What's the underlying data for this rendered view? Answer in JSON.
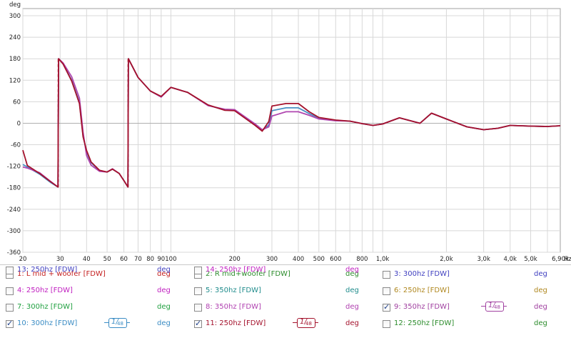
{
  "chart_data": {
    "type": "line",
    "ylabel": "deg",
    "xlabel": "Hz",
    "x_scale": "log",
    "xlim": [
      20,
      6900
    ],
    "ylim": [
      -360,
      320
    ],
    "x_ticks": [
      {
        "v": 20,
        "label": "20"
      },
      {
        "v": 30,
        "label": "30"
      },
      {
        "v": 40,
        "label": "40"
      },
      {
        "v": 50,
        "label": "50"
      },
      {
        "v": 60,
        "label": "60"
      },
      {
        "v": 70,
        "label": "70"
      },
      {
        "v": 80,
        "label": "80"
      },
      {
        "v": 90,
        "label": "90"
      },
      {
        "v": 100,
        "label": "100"
      },
      {
        "v": 200,
        "label": "200"
      },
      {
        "v": 300,
        "label": "300"
      },
      {
        "v": 400,
        "label": "400"
      },
      {
        "v": 500,
        "label": "500"
      },
      {
        "v": 600,
        "label": "600"
      },
      {
        "v": 800,
        "label": "800"
      },
      {
        "v": 1000,
        "label": "1,0k"
      },
      {
        "v": 2000,
        "label": "2,0k"
      },
      {
        "v": 3000,
        "label": "3,0k"
      },
      {
        "v": 4000,
        "label": "4,0k"
      },
      {
        "v": 5000,
        "label": "5,0k"
      },
      {
        "v": 6900,
        "label": "6,90k"
      }
    ],
    "x_grid": [
      20,
      30,
      40,
      50,
      60,
      70,
      80,
      90,
      100,
      200,
      300,
      400,
      500,
      600,
      700,
      800,
      900,
      1000,
      2000,
      3000,
      4000,
      5000,
      6000
    ],
    "y_ticks": [
      300,
      240,
      180,
      120,
      60,
      0,
      -60,
      -120,
      -180,
      -240,
      -300,
      -360
    ],
    "grid": true,
    "series": [
      {
        "name": "10: 300hz [FDW]",
        "color": "#4a90c4",
        "dashed": false,
        "x": [
          20,
          21,
          24,
          27,
          29.3,
          29.5,
          31,
          34,
          37,
          38.5,
          40,
          42,
          46,
          50,
          53,
          57,
          60,
          62.7,
          63,
          70,
          80,
          90,
          100,
          120,
          150,
          180,
          200,
          250,
          270,
          290,
          300,
          350,
          400,
          450,
          500,
          600,
          700,
          800,
          900,
          1000,
          1200,
          1500,
          1700,
          2000,
          2500,
          3000,
          3500,
          4000,
          5000,
          6000,
          6900
        ],
        "y": [
          -115,
          -122,
          -142,
          -165,
          -178,
          180,
          165,
          120,
          58,
          -35,
          -80,
          -110,
          -132,
          -136,
          -128,
          -140,
          -160,
          -178,
          180,
          128,
          90,
          74,
          100,
          86,
          50,
          37,
          36,
          -4,
          -20,
          -5,
          35,
          43,
          43,
          27,
          14,
          8,
          6,
          -1,
          -6,
          -2,
          15,
          0,
          28,
          12,
          -10,
          -18,
          -14,
          -6,
          -8,
          -9,
          -7
        ]
      },
      {
        "name": "9: 350hz [FDW]",
        "color": "#b046b0",
        "dashed": false,
        "x": [
          20,
          21,
          24,
          27,
          29.3,
          29.5,
          31,
          34,
          37,
          38.5,
          40,
          42,
          46,
          50,
          53,
          57,
          60,
          62.7,
          63,
          70,
          80,
          90,
          100,
          120,
          150,
          180,
          200,
          250,
          270,
          290,
          300,
          350,
          400,
          450,
          500,
          600,
          700,
          800,
          900,
          1000,
          1200,
          1500,
          1700,
          2000,
          2500,
          3000,
          3500,
          4000,
          5000,
          6000,
          6900
        ],
        "y": [
          -122,
          -125,
          -138,
          -162,
          -178,
          180,
          168,
          130,
          70,
          -25,
          -90,
          -117,
          -134,
          -136,
          -127,
          -140,
          -160,
          -178,
          180,
          128,
          90,
          73,
          100,
          86,
          49,
          39,
          38,
          -2,
          -18,
          -10,
          20,
          32,
          32,
          22,
          12,
          7,
          6,
          -1,
          -6,
          -2,
          15,
          0,
          28,
          12,
          -10,
          -18,
          -14,
          -6,
          -8,
          -9,
          -7
        ]
      },
      {
        "name": "11: 250hz [FDW]",
        "color": "#a4122c",
        "dashed": true,
        "x": [
          20,
          21,
          24,
          27,
          29.3,
          29.5,
          31,
          34,
          37,
          38.5,
          40,
          42,
          46,
          50,
          53,
          57,
          60,
          62.7,
          63,
          70,
          80,
          90,
          100,
          120,
          150,
          180,
          200,
          250,
          270,
          290,
          300,
          350,
          400,
          450,
          500,
          600,
          700,
          800,
          900,
          1000,
          1200,
          1500,
          1700,
          2000,
          2500,
          3000,
          3500,
          4000,
          5000,
          6000,
          6900
        ],
        "y": [
          -75,
          -118,
          -140,
          -163,
          -178,
          180,
          165,
          118,
          55,
          -38,
          -76,
          -108,
          -131,
          -136,
          -128,
          -140,
          -160,
          -178,
          180,
          128,
          90,
          75,
          100,
          86,
          51,
          36,
          35,
          -6,
          -22,
          5,
          48,
          55,
          55,
          32,
          16,
          9,
          6,
          -1,
          -6,
          -2,
          15,
          0,
          28,
          12,
          -10,
          -18,
          -14,
          -6,
          -8,
          -9,
          -7
        ]
      }
    ]
  },
  "legend": {
    "unit": "deg",
    "items": [
      {
        "label": "1: L mid + woofer [FDW]",
        "checked": false,
        "color": "#c42020"
      },
      {
        "label": "2: R mid+woofer [FDW]",
        "checked": false,
        "color": "#2c8c2c"
      },
      {
        "label": "3: 300hz [FDW]",
        "checked": false,
        "color": "#4040c0"
      },
      {
        "label": "4: 250hz [FDW]",
        "checked": false,
        "color": "#c020c0"
      },
      {
        "label": "5: 350hz [FDW]",
        "checked": false,
        "color": "#208c8c"
      },
      {
        "label": "6: 250hz [FDW]",
        "checked": false,
        "color": "#b08820"
      },
      {
        "label": "7: 300hz [FDW]",
        "checked": false,
        "color": "#20a040"
      },
      {
        "label": "8: 350hz [FDW]",
        "checked": false,
        "color": "#b040b0"
      },
      {
        "label": "9: 350hz [FDW]",
        "checked": true,
        "color": "#a040a0",
        "smoothing": "48"
      },
      {
        "label": "10: 300hz [FDW]",
        "checked": true,
        "color": "#3a8cc4",
        "smoothing": "48"
      },
      {
        "label": "11: 250hz [FDW]",
        "checked": true,
        "color": "#a4122c",
        "smoothing": "48"
      },
      {
        "label": "12: 250hz [FDW]",
        "checked": false,
        "color": "#2c8c2c"
      },
      {
        "label": "13: 250hz [FDW]",
        "checked": false,
        "color": "#4040c0"
      },
      {
        "label": "14: 250hz [FDW]",
        "checked": false,
        "color": "#c020c0"
      }
    ]
  }
}
